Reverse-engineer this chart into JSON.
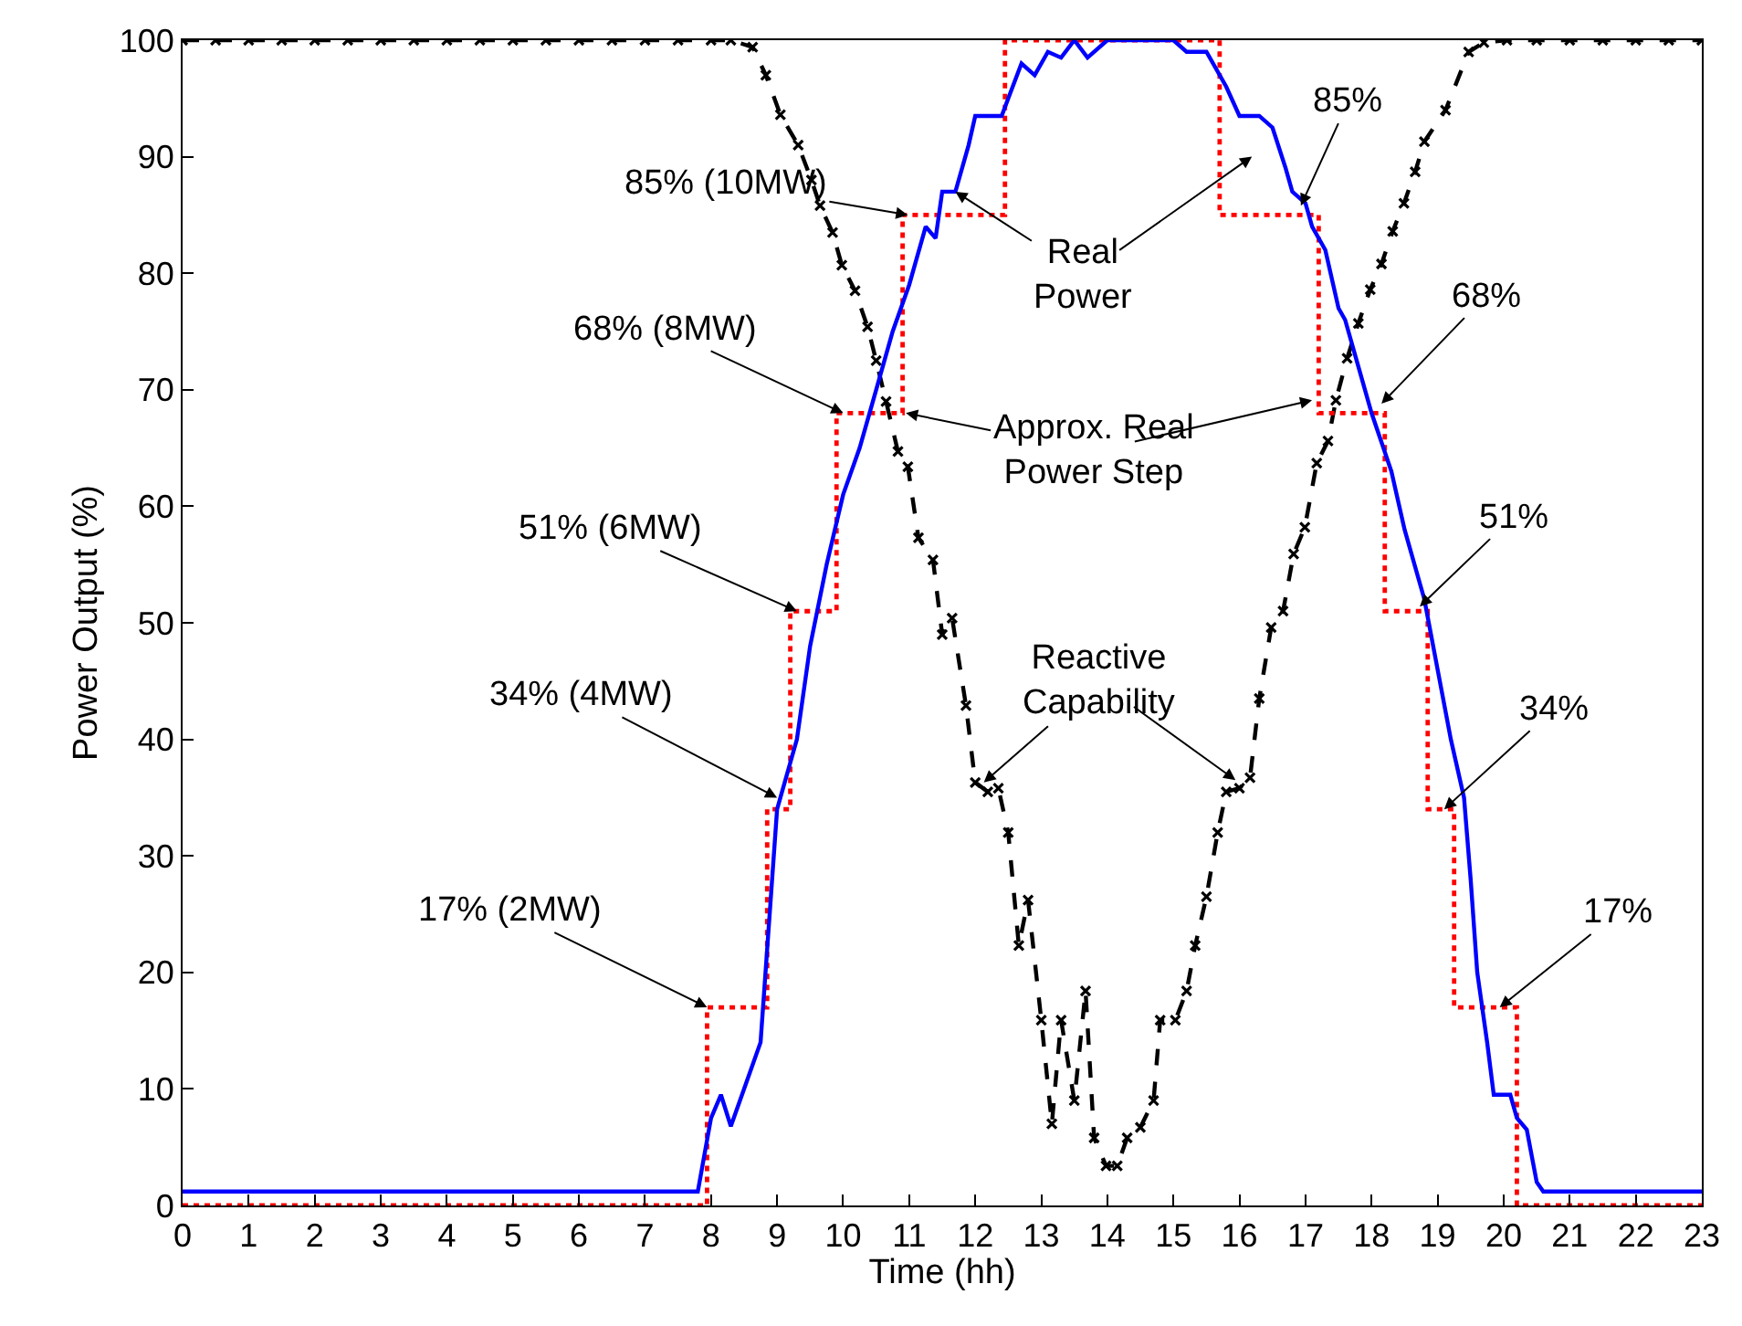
{
  "chart_data": {
    "type": "line",
    "xlabel": "Time (hh)",
    "ylabel": "Power Output (%)",
    "xlim": [
      0,
      23
    ],
    "xticks": [
      0,
      1,
      2,
      3,
      4,
      5,
      6,
      7,
      8,
      9,
      10,
      11,
      12,
      13,
      14,
      15,
      16,
      17,
      18,
      19,
      20,
      21,
      22,
      23
    ],
    "ylim": [
      0,
      100
    ],
    "yticks": [
      0,
      10,
      20,
      30,
      40,
      50,
      60,
      70,
      80,
      90,
      100
    ],
    "series": [
      {
        "color": "#000000",
        "line_style": "dashed",
        "marker": "cross",
        "x": [
          0,
          0.5,
          1,
          1.5,
          2,
          2.5,
          3,
          3.5,
          4,
          4.5,
          5,
          5.5,
          6,
          6.5,
          7,
          7.5,
          8,
          8.3,
          8.63,
          8.83,
          9.05,
          9.32,
          9.52,
          9.65,
          9.84,
          9.98,
          10.18,
          10.37,
          10.5,
          10.65,
          10.83,
          10.98,
          11.14,
          11.36,
          11.5,
          11.65,
          11.86,
          12.0,
          12.19,
          12.35,
          12.5,
          12.66,
          12.8,
          13.0,
          13.16,
          13.3,
          13.5,
          13.67,
          13.8,
          13.98,
          14.15,
          14.3,
          14.5,
          14.7,
          14.8,
          15.03,
          15.2,
          15.33,
          15.5,
          15.67,
          15.8,
          16.0,
          16.16,
          16.3,
          16.48,
          16.66,
          16.82,
          16.99,
          17.17,
          17.34,
          17.46,
          17.63,
          17.8,
          17.98,
          18.15,
          18.32,
          18.49,
          18.66,
          18.8,
          19.12,
          19.47,
          19.7,
          20.05,
          20.5,
          21,
          21.5,
          22,
          22.5,
          23
        ],
        "values": [
          100,
          100,
          100,
          100,
          100,
          100,
          100,
          100,
          100,
          100,
          100,
          100,
          100,
          100,
          100,
          100,
          100,
          100,
          99.4,
          97,
          93.6,
          91,
          88,
          85.8,
          83.5,
          80.7,
          78.5,
          75.4,
          72.5,
          69,
          64.7,
          63.4,
          57.3,
          55.4,
          49,
          50.4,
          42.9,
          36.3,
          35.5,
          35.8,
          32,
          22.3,
          26.2,
          15.9,
          7,
          15.9,
          9,
          18.4,
          5.8,
          3.4,
          3.4,
          5.8,
          6.7,
          9,
          15.9,
          15.9,
          18.4,
          22.3,
          26.5,
          32,
          35.5,
          35.8,
          36.7,
          43.5,
          49.6,
          51,
          55.9,
          58.2,
          63.7,
          65.6,
          69.1,
          72.7,
          75.7,
          78.6,
          80.8,
          83.6,
          86,
          88.7,
          91.3,
          94,
          99,
          99.8,
          100,
          100,
          100,
          100,
          100,
          100,
          100
        ]
      },
      {
        "type": "step",
        "color": "#ff0000",
        "line_style": "dotted",
        "marker": "none",
        "x": [
          0,
          7.94,
          8.85,
          9.2,
          9.9,
          10.9,
          12.45,
          15.7,
          17.2,
          18.2,
          18.85,
          19.25,
          20.2,
          23
        ],
        "values": [
          0,
          17,
          34,
          51,
          68,
          85,
          100,
          85,
          68,
          51,
          34,
          17,
          0,
          0
        ]
      },
      {
        "color": "#0000ff",
        "line_style": "solid",
        "marker": "none",
        "x": [
          0,
          7.8,
          8.0,
          8.15,
          8.3,
          8.5,
          8.75,
          9.0,
          9.3,
          9.5,
          9.75,
          10.0,
          10.25,
          10.5,
          10.75,
          11.0,
          11.1,
          11.25,
          11.4,
          11.5,
          11.7,
          11.9,
          12.0,
          12.4,
          12.5,
          12.7,
          12.9,
          13.1,
          13.3,
          13.5,
          13.7,
          14.0,
          14.5,
          15.0,
          15.2,
          15.5,
          15.8,
          16.0,
          16.3,
          16.5,
          16.7,
          16.8,
          17.0,
          17.1,
          17.3,
          17.5,
          17.6,
          17.8,
          18.0,
          18.3,
          18.5,
          18.8,
          19.0,
          19.2,
          19.4,
          19.5,
          19.6,
          19.75,
          19.85,
          20.1,
          20.2,
          20.35,
          20.5,
          20.6,
          23
        ],
        "values": [
          1.2,
          1.2,
          7.5,
          9.5,
          6.8,
          10,
          14,
          34,
          40,
          48,
          55,
          61,
          65,
          70,
          75,
          79,
          81,
          84,
          83,
          87,
          87,
          91,
          93.5,
          93.5,
          95,
          98,
          97,
          99,
          98.5,
          100,
          98.5,
          100,
          100,
          100,
          99,
          99,
          96,
          93.5,
          93.5,
          92.5,
          89,
          87,
          86,
          84,
          82,
          77,
          76,
          72,
          68,
          63,
          58,
          52,
          46,
          40,
          35,
          28,
          20,
          14,
          9.5,
          9.5,
          7.5,
          6.5,
          2,
          1.2,
          1.2
        ]
      }
    ],
    "annotations": [
      {
        "text": "17% (2MW)",
        "x": 7.94,
        "y": 17
      },
      {
        "text": "34% (4MW)",
        "x": 9.0,
        "y": 35
      },
      {
        "text": "51% (6MW)",
        "x": 9.3,
        "y": 51
      },
      {
        "text": "68% (8MW)",
        "x": 10.0,
        "y": 68
      },
      {
        "text": "85% (10MW)",
        "x": 10.98,
        "y": 85
      },
      {
        "text": "Real\nPower",
        "x": 11.7,
        "y": 87
      },
      {
        "text": "Approx. Real\nPower Step",
        "x": 10.95,
        "y": 68
      },
      {
        "text": "Reactive\nCapability",
        "x": 12.13,
        "y": 36.3
      },
      {
        "text": "85%",
        "x": 16.93,
        "y": 85.8
      },
      {
        "text": "68%",
        "x": 18.15,
        "y": 68.8
      },
      {
        "text": "51%",
        "x": 18.73,
        "y": 51.4
      },
      {
        "text": "34%",
        "x": 19.1,
        "y": 34
      },
      {
        "text": "17%",
        "x": 19.94,
        "y": 17
      }
    ]
  }
}
